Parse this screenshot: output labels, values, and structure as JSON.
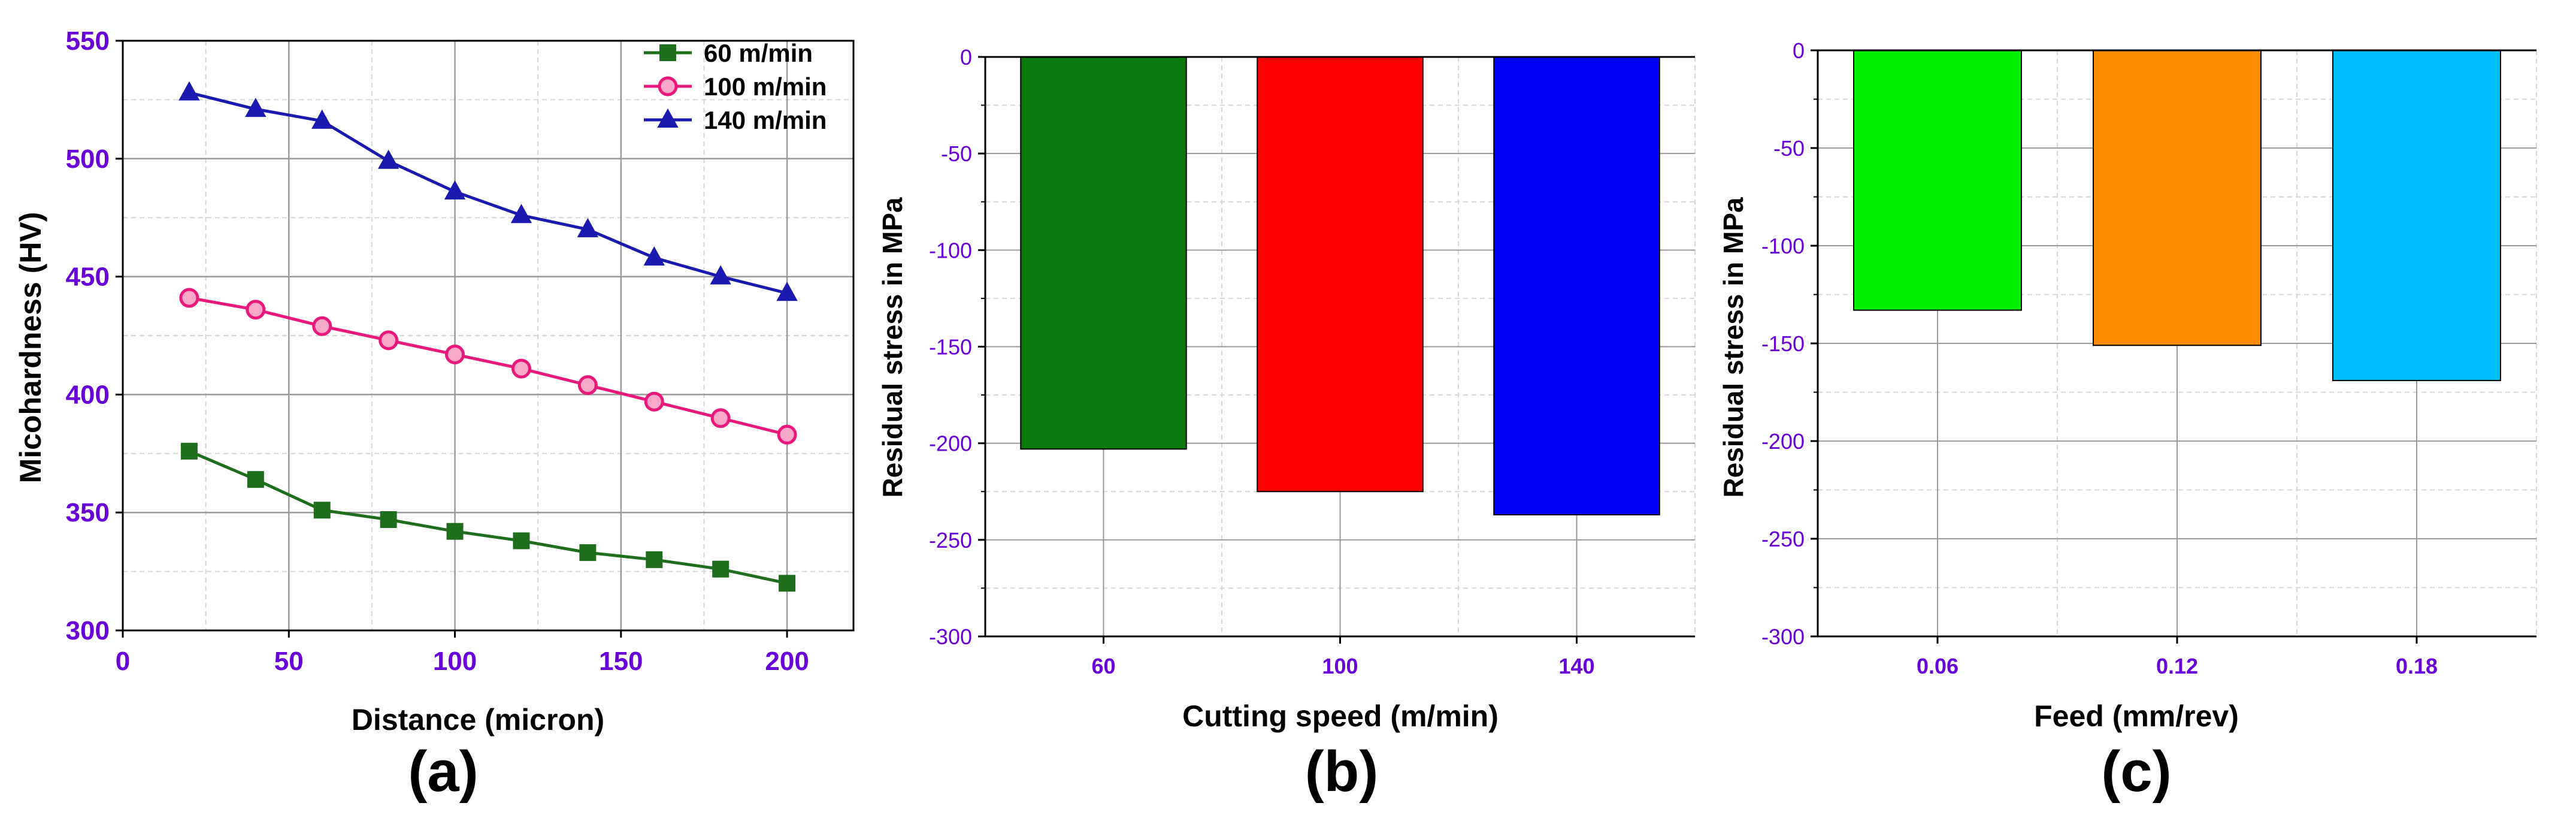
{
  "colors": {
    "tick_label": "#6a00d8",
    "axis_title": "#000000",
    "axis_line": "#000000",
    "grid_major": "#9a9a9a",
    "grid_minor": "#d6d6d6"
  },
  "chart_data": [
    {
      "type": "line",
      "panel_label": "(a)",
      "title": "",
      "xlabel": "Distance (micron)",
      "ylabel": "Micohardness (HV)",
      "xlim": [
        0,
        220
      ],
      "ylim": [
        300,
        550
      ],
      "x_ticks": [
        "0",
        "50",
        "100",
        "150",
        "200"
      ],
      "x_tick_values": [
        0,
        50,
        100,
        150,
        200
      ],
      "y_ticks": [
        "300",
        "350",
        "400",
        "450",
        "500",
        "550"
      ],
      "y_tick_values": [
        300,
        350,
        400,
        450,
        500,
        550
      ],
      "grid": true,
      "legend_position": "top-right",
      "x": [
        20,
        40,
        60,
        80,
        100,
        120,
        140,
        160,
        180,
        200
      ],
      "series": [
        {
          "name": "60 m/min",
          "color": "#1e6e1e",
          "marker": "square",
          "values": [
            376,
            364,
            351,
            347,
            342,
            338,
            333,
            330,
            326,
            320
          ]
        },
        {
          "name": "100 m/min",
          "color": "#e8197a",
          "marker": "circle",
          "values": [
            441,
            436,
            429,
            423,
            417,
            411,
            404,
            397,
            390,
            383
          ]
        },
        {
          "name": "140 m/min",
          "color": "#1a1ab0",
          "marker": "triangle",
          "values": [
            528,
            521,
            516,
            499,
            486,
            476,
            470,
            458,
            450,
            443
          ]
        }
      ]
    },
    {
      "type": "bar",
      "panel_label": "(b)",
      "title": "",
      "xlabel": "Cutting speed (m/min)",
      "ylabel": "Residual stress in MPa",
      "ylim": [
        -300,
        0
      ],
      "y_ticks": [
        "0",
        "-50",
        "-100",
        "-150",
        "-200",
        "-250",
        "-300"
      ],
      "y_tick_values": [
        0,
        -50,
        -100,
        -150,
        -200,
        -250,
        -300
      ],
      "categories": [
        "60",
        "100",
        "140"
      ],
      "values": [
        -203,
        -225,
        -237
      ],
      "bar_colors": [
        "#0a7a0a",
        "#ff0000",
        "#0000ff"
      ],
      "grid": true
    },
    {
      "type": "bar",
      "panel_label": "(c)",
      "title": "",
      "xlabel": "Feed (mm/rev)",
      "ylabel": "Residual stress in MPa",
      "ylim": [
        -300,
        0
      ],
      "y_ticks": [
        "0",
        "-50",
        "-100",
        "-150",
        "-200",
        "-250",
        "-300"
      ],
      "y_tick_values": [
        0,
        -50,
        -100,
        -150,
        -200,
        -250,
        -300
      ],
      "categories": [
        "0.06",
        "0.12",
        "0.18"
      ],
      "values": [
        -133,
        -151,
        -169
      ],
      "bar_colors": [
        "#00f000",
        "#ff8c00",
        "#00bfff"
      ],
      "grid": true
    }
  ]
}
